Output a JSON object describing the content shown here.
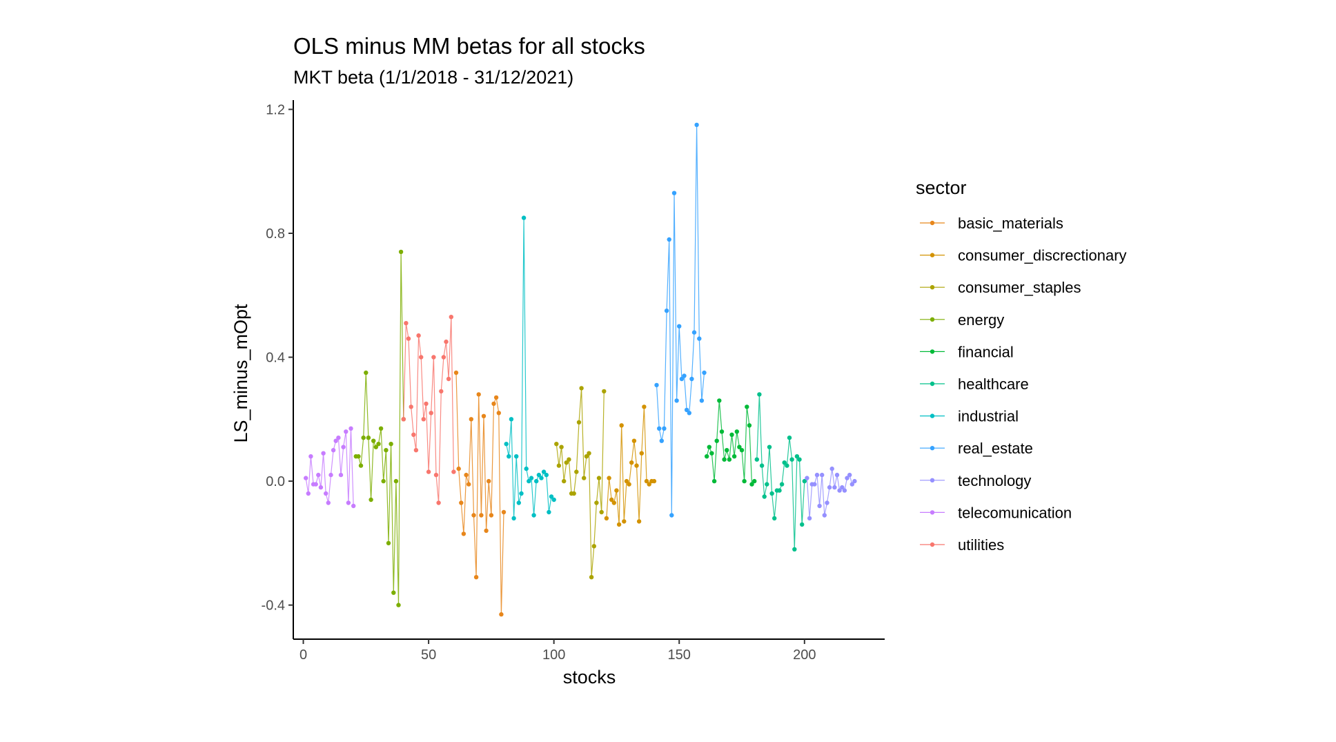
{
  "chart_data": {
    "type": "line",
    "title": "OLS minus MM betas for all stocks",
    "subtitle": "MKT beta (1/1/2018 - 31/12/2021)",
    "xlabel": "stocks",
    "ylabel": "LS_minus_mOpt",
    "xlim": [
      -4,
      232
    ],
    "ylim": [
      -0.51,
      1.23
    ],
    "x_ticks": [
      0,
      50,
      100,
      150,
      200
    ],
    "y_ticks": [
      -0.4,
      0.0,
      0.4,
      0.8,
      1.2
    ],
    "y_tick_labels": [
      "-0.4",
      "0.0",
      "0.4",
      "0.8",
      "1.2"
    ],
    "grid": false,
    "legend": {
      "title": "sector",
      "position": "right"
    },
    "series": [
      {
        "name": "telecomunication",
        "color": "#C77CFF",
        "x": [
          1,
          2,
          3,
          4,
          5,
          6,
          7,
          8,
          9,
          10,
          11,
          12,
          13,
          14,
          15,
          16,
          17,
          18,
          19,
          20
        ],
        "values": [
          0.01,
          -0.04,
          0.08,
          -0.01,
          -0.01,
          0.02,
          -0.02,
          0.09,
          -0.04,
          -0.07,
          0.02,
          0.1,
          0.13,
          0.14,
          0.02,
          0.11,
          0.16,
          -0.07,
          0.17,
          -0.08
        ]
      },
      {
        "name": "energy",
        "color": "#7CAE00",
        "x": [
          21,
          22,
          23,
          24,
          25,
          26,
          27,
          28,
          29,
          30,
          31,
          32,
          33,
          34,
          35,
          36,
          37,
          38,
          39,
          40
        ],
        "values": [
          0.08,
          0.08,
          0.05,
          0.14,
          0.35,
          0.14,
          -0.06,
          0.13,
          0.11,
          0.12,
          0.17,
          0.0,
          0.1,
          -0.2,
          0.12,
          -0.36,
          0.0,
          -0.4,
          0.74,
          0.2
        ]
      },
      {
        "name": "utilities",
        "color": "#F8766D",
        "x": [
          40,
          41,
          42,
          43,
          44,
          45,
          46,
          47,
          48,
          49,
          50,
          51,
          52,
          53,
          54,
          55,
          56,
          57,
          58,
          59,
          60
        ],
        "values": [
          0.2,
          0.51,
          0.46,
          0.24,
          0.15,
          0.1,
          0.47,
          0.4,
          0.2,
          0.25,
          0.03,
          0.22,
          0.4,
          0.02,
          -0.07,
          0.29,
          0.4,
          0.45,
          0.33,
          0.53,
          0.03
        ]
      },
      {
        "name": "basic_materials",
        "color": "#E7861B",
        "x": [
          61,
          62,
          63,
          64,
          65,
          66,
          67,
          68,
          69,
          70,
          71,
          72,
          73,
          74,
          75,
          76,
          77,
          78,
          79,
          80
        ],
        "values": [
          0.35,
          0.04,
          -0.07,
          -0.17,
          0.02,
          -0.01,
          0.2,
          -0.11,
          -0.31,
          0.28,
          -0.11,
          0.21,
          -0.16,
          0.0,
          -0.11,
          0.25,
          0.27,
          0.22,
          -0.43,
          -0.1
        ]
      },
      {
        "name": "industrial",
        "color": "#00BFC4",
        "x": [
          81,
          82,
          83,
          84,
          85,
          86,
          87,
          88,
          89,
          90,
          91,
          92,
          93,
          94,
          95,
          96,
          97,
          98,
          99,
          100
        ],
        "values": [
          0.12,
          0.08,
          0.2,
          -0.12,
          0.08,
          -0.07,
          -0.04,
          0.85,
          0.04,
          0.0,
          0.01,
          -0.11,
          0.0,
          0.02,
          0.01,
          0.03,
          0.02,
          -0.1,
          -0.05,
          -0.06
        ]
      },
      {
        "name": "consumer_staples",
        "color": "#ABA300",
        "x": [
          101,
          102,
          103,
          104,
          105,
          106,
          107,
          108,
          109,
          110,
          111,
          112,
          113,
          114,
          115,
          116,
          117,
          118,
          119,
          120
        ],
        "values": [
          0.12,
          0.05,
          0.11,
          0.0,
          0.06,
          0.07,
          -0.04,
          -0.04,
          0.03,
          0.19,
          0.3,
          0.01,
          0.08,
          0.09,
          -0.31,
          -0.21,
          -0.07,
          0.01,
          -0.1,
          0.29
        ]
      },
      {
        "name": "consumer_discrectionary",
        "color": "#D39200",
        "x": [
          121,
          122,
          123,
          124,
          125,
          126,
          127,
          128,
          129,
          130,
          131,
          132,
          133,
          134,
          135,
          136,
          137,
          138,
          139,
          140
        ],
        "values": [
          -0.12,
          0.01,
          -0.06,
          -0.07,
          -0.03,
          -0.14,
          0.18,
          -0.13,
          0.0,
          -0.01,
          0.06,
          0.13,
          0.05,
          -0.13,
          0.09,
          0.24,
          0.0,
          -0.01,
          0.0,
          0.0
        ]
      },
      {
        "name": "real_estate",
        "color": "#35A2FF",
        "x": [
          141,
          142,
          143,
          144,
          145,
          146,
          147,
          148,
          149,
          150,
          151,
          152,
          153,
          154,
          155,
          156,
          157,
          158,
          159,
          160
        ],
        "values": [
          0.31,
          0.17,
          0.13,
          0.17,
          0.55,
          0.78,
          -0.11,
          0.93,
          0.26,
          0.5,
          0.33,
          0.34,
          0.23,
          0.22,
          0.33,
          0.48,
          1.15,
          0.46,
          0.26,
          0.35
        ]
      },
      {
        "name": "financial",
        "color": "#00BA38",
        "x": [
          161,
          162,
          163,
          164,
          165,
          166,
          167,
          168,
          169,
          170,
          171,
          172,
          173,
          174,
          175,
          176,
          177,
          178,
          179,
          180
        ],
        "values": [
          0.08,
          0.11,
          0.09,
          0.0,
          0.13,
          0.26,
          0.16,
          0.07,
          0.1,
          0.07,
          0.15,
          0.08,
          0.16,
          0.11,
          0.1,
          0.0,
          0.24,
          0.18,
          -0.01,
          0.0
        ]
      },
      {
        "name": "healthcare",
        "color": "#00C08B",
        "x": [
          181,
          182,
          183,
          184,
          185,
          186,
          187,
          188,
          189,
          190,
          191,
          192,
          193,
          194,
          195,
          196,
          197,
          198,
          199,
          200
        ],
        "values": [
          0.07,
          0.28,
          0.05,
          -0.05,
          -0.01,
          0.11,
          -0.04,
          -0.12,
          -0.03,
          -0.03,
          -0.01,
          0.06,
          0.05,
          0.14,
          0.07,
          -0.22,
          0.08,
          0.07,
          -0.14,
          0.0
        ]
      },
      {
        "name": "technology",
        "color": "#9590FF",
        "x": [
          201,
          202,
          203,
          204,
          205,
          206,
          207,
          208,
          209,
          210,
          211,
          212,
          213,
          214,
          215,
          216,
          217,
          218,
          219,
          220
        ],
        "values": [
          0.01,
          -0.12,
          -0.01,
          -0.01,
          0.02,
          -0.08,
          0.02,
          -0.11,
          -0.07,
          -0.02,
          0.04,
          -0.02,
          0.02,
          -0.03,
          -0.02,
          -0.03,
          0.01,
          0.02,
          -0.01,
          0.0
        ]
      }
    ],
    "legend_items": [
      {
        "label": "basic_materials",
        "color": "#E7861B"
      },
      {
        "label": "consumer_discrectionary",
        "color": "#D39200"
      },
      {
        "label": "consumer_staples",
        "color": "#ABA300"
      },
      {
        "label": "energy",
        "color": "#7CAE00"
      },
      {
        "label": "financial",
        "color": "#00BA38"
      },
      {
        "label": "healthcare",
        "color": "#00C08B"
      },
      {
        "label": "industrial",
        "color": "#00BFC4"
      },
      {
        "label": "real_estate",
        "color": "#35A2FF"
      },
      {
        "label": "technology",
        "color": "#9590FF"
      },
      {
        "label": "telecomunication",
        "color": "#C77CFF"
      },
      {
        "label": "utilities",
        "color": "#F8766D"
      }
    ]
  }
}
